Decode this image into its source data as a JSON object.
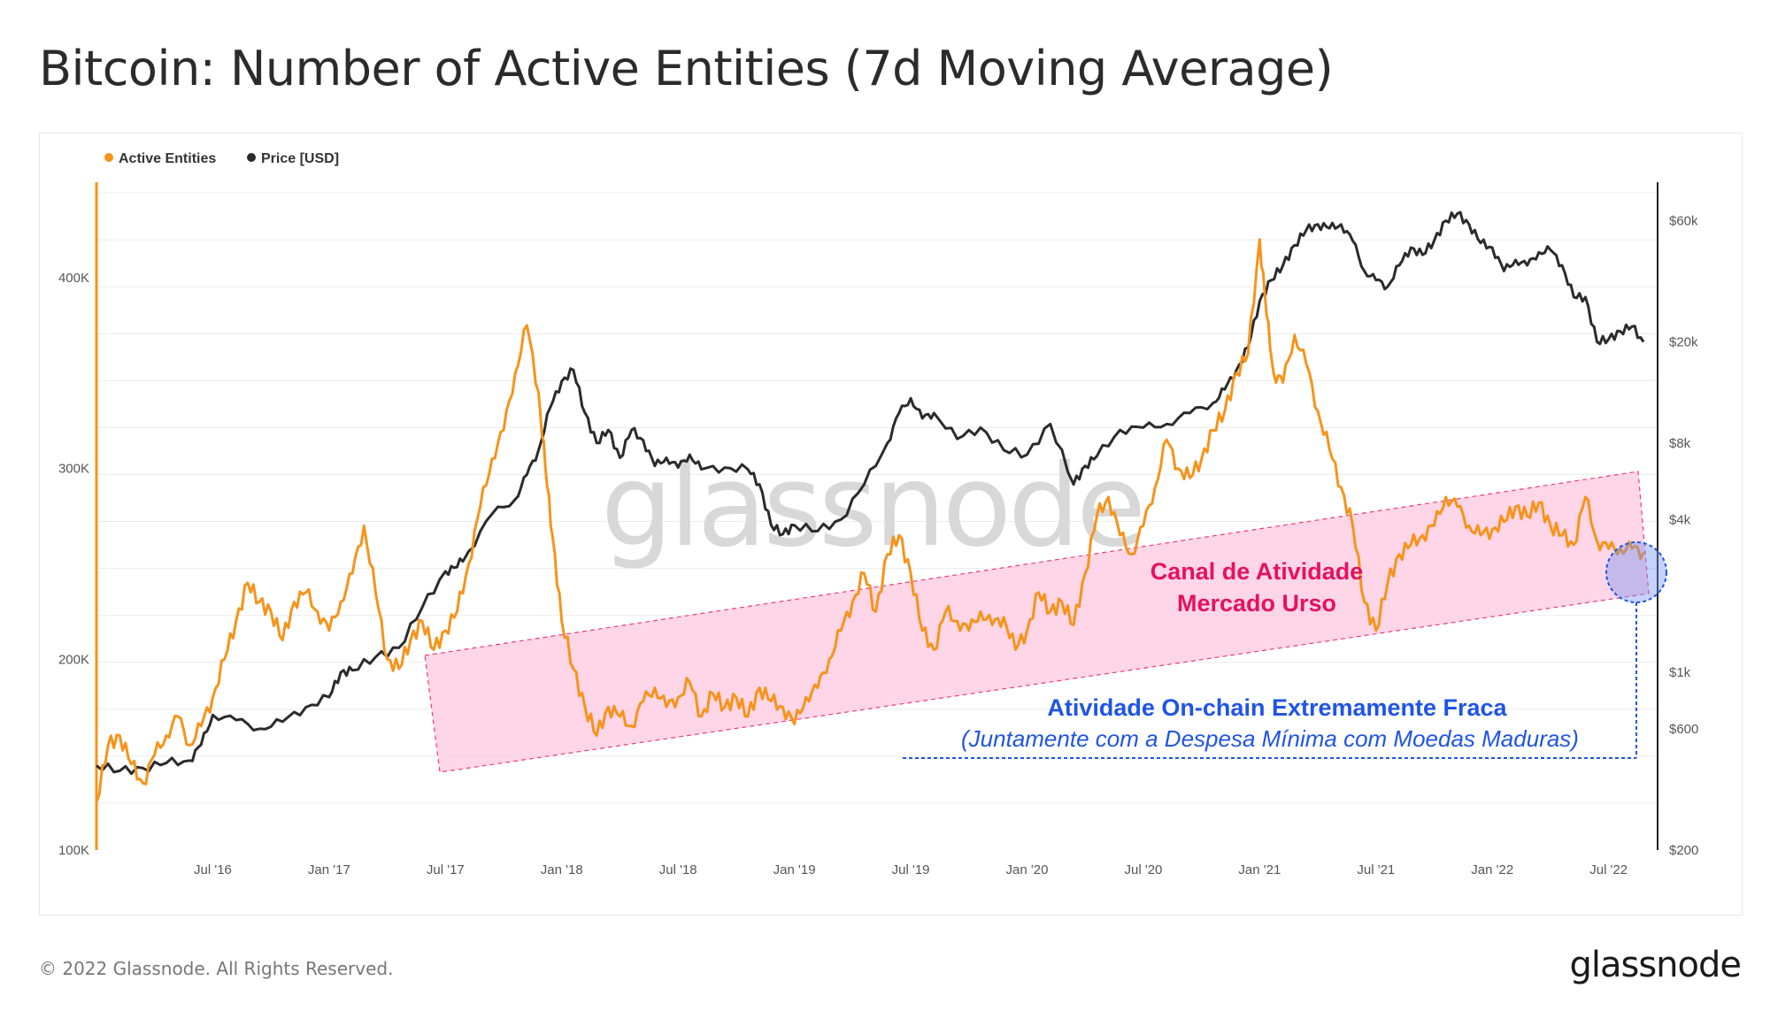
{
  "title": "Bitcoin: Number of Active Entities (7d Moving Average)",
  "footer": "© 2022 Glassnode. All Rights Reserved.",
  "brand": "glassnode",
  "watermark": "glassnode",
  "colors": {
    "active": "#f7931a",
    "price": "#2b2b2b",
    "channel": "#ffb6d5",
    "channel_border": "#f03c7a",
    "pink_text": "#e8105f",
    "blue_text": "#1f54e6"
  },
  "chart_data": {
    "type": "line",
    "title": "Bitcoin: Number of Active Entities (7d Moving Average)",
    "legend": [
      "Active Entities",
      "Price [USD]"
    ],
    "legend_position": "top-left",
    "x_ticks": [
      "Jul '16",
      "Jan '17",
      "Jul '17",
      "Jan '18",
      "Jul '18",
      "Jan '19",
      "Jul '19",
      "Jan '20",
      "Jul '20",
      "Jan '21",
      "Jul '21",
      "Jan '22",
      "Jul '22"
    ],
    "x_range": [
      2016.0,
      2022.68
    ],
    "y_left": {
      "label": "Active Entities",
      "ticks": [
        "100K",
        "200K",
        "300K",
        "400K"
      ],
      "tick_values": [
        100000,
        200000,
        300000,
        400000
      ],
      "range": [
        100000,
        450000
      ]
    },
    "y_right": {
      "label": "Price [USD]",
      "scale": "log",
      "ticks": [
        "$200",
        "$600",
        "$1k",
        "$4k",
        "$8k",
        "$20k",
        "$60k"
      ],
      "tick_values": [
        200,
        600,
        1000,
        4000,
        8000,
        20000,
        60000
      ],
      "range": [
        200,
        85000
      ]
    },
    "series": [
      {
        "name": "Active Entities",
        "x": [
          2016.0,
          2016.05,
          2016.1,
          2016.15,
          2016.2,
          2016.25,
          2016.3,
          2016.35,
          2016.4,
          2016.45,
          2016.5,
          2016.55,
          2016.6,
          2016.65,
          2016.7,
          2016.75,
          2016.8,
          2016.85,
          2016.9,
          2016.95,
          2017.0,
          2017.05,
          2017.1,
          2017.15,
          2017.2,
          2017.25,
          2017.3,
          2017.35,
          2017.4,
          2017.45,
          2017.5,
          2017.55,
          2017.6,
          2017.65,
          2017.7,
          2017.75,
          2017.8,
          2017.85,
          2017.9,
          2017.93,
          2017.96,
          2018.0,
          2018.05,
          2018.1,
          2018.15,
          2018.2,
          2018.25,
          2018.3,
          2018.35,
          2018.4,
          2018.45,
          2018.5,
          2018.55,
          2018.6,
          2018.65,
          2018.7,
          2018.75,
          2018.8,
          2018.85,
          2018.9,
          2018.95,
          2019.0,
          2019.05,
          2019.1,
          2019.15,
          2019.2,
          2019.25,
          2019.3,
          2019.35,
          2019.4,
          2019.45,
          2019.5,
          2019.55,
          2019.6,
          2019.65,
          2019.7,
          2019.75,
          2019.8,
          2019.85,
          2019.9,
          2019.95,
          2020.0,
          2020.05,
          2020.1,
          2020.15,
          2020.2,
          2020.25,
          2020.3,
          2020.35,
          2020.4,
          2020.45,
          2020.5,
          2020.55,
          2020.6,
          2020.65,
          2020.7,
          2020.75,
          2020.8,
          2020.85,
          2020.9,
          2020.95,
          2021.0,
          2021.03,
          2021.06,
          2021.1,
          2021.15,
          2021.2,
          2021.25,
          2021.3,
          2021.35,
          2021.4,
          2021.45,
          2021.5,
          2021.55,
          2021.6,
          2021.65,
          2021.7,
          2021.75,
          2021.8,
          2021.85,
          2021.9,
          2021.95,
          2022.0,
          2022.05,
          2022.1,
          2022.15,
          2022.2,
          2022.25,
          2022.3,
          2022.35,
          2022.4,
          2022.45,
          2022.5,
          2022.55,
          2022.6,
          2022.65
        ],
        "values": [
          125000,
          155000,
          160000,
          145000,
          135000,
          150000,
          160000,
          170000,
          155000,
          165000,
          180000,
          200000,
          220000,
          240000,
          230000,
          225000,
          210000,
          230000,
          235000,
          225000,
          215000,
          230000,
          245000,
          270000,
          235000,
          200000,
          195000,
          210000,
          220000,
          205000,
          215000,
          225000,
          250000,
          280000,
          305000,
          320000,
          350000,
          375000,
          340000,
          300000,
          265000,
          220000,
          195000,
          175000,
          160000,
          175000,
          170000,
          165000,
          178000,
          185000,
          175000,
          180000,
          188000,
          170000,
          182000,
          175000,
          180000,
          170000,
          185000,
          178000,
          175000,
          166000,
          180000,
          185000,
          200000,
          215000,
          230000,
          245000,
          225000,
          255000,
          265000,
          245000,
          215000,
          205000,
          225000,
          220000,
          215000,
          225000,
          218000,
          222000,
          205000,
          215000,
          235000,
          225000,
          230000,
          218000,
          245000,
          275000,
          285000,
          265000,
          255000,
          270000,
          290000,
          315000,
          300000,
          295000,
          305000,
          320000,
          330000,
          350000,
          360000,
          420000,
          380000,
          350000,
          345000,
          370000,
          355000,
          330000,
          310000,
          290000,
          270000,
          230000,
          215000,
          240000,
          255000,
          260000,
          265000,
          270000,
          285000,
          280000,
          270000,
          265000,
          268000,
          272000,
          280000,
          275000,
          282000,
          270000,
          265000,
          260000,
          285000,
          262000,
          258000,
          258000,
          258000,
          256000
        ]
      },
      {
        "name": "Price [USD]",
        "x": [
          2016.0,
          2016.1,
          2016.2,
          2016.3,
          2016.4,
          2016.45,
          2016.5,
          2016.6,
          2016.7,
          2016.8,
          2016.9,
          2017.0,
          2017.05,
          2017.1,
          2017.2,
          2017.3,
          2017.4,
          2017.5,
          2017.55,
          2017.6,
          2017.7,
          2017.8,
          2017.85,
          2017.9,
          2017.95,
          2018.0,
          2018.05,
          2018.1,
          2018.15,
          2018.2,
          2018.25,
          2018.3,
          2018.35,
          2018.4,
          2018.45,
          2018.5,
          2018.55,
          2018.6,
          2018.7,
          2018.8,
          2018.85,
          2018.9,
          2018.95,
          2019.0,
          2019.1,
          2019.2,
          2019.3,
          2019.4,
          2019.45,
          2019.5,
          2019.55,
          2019.6,
          2019.7,
          2019.8,
          2019.9,
          2020.0,
          2020.1,
          2020.2,
          2020.25,
          2020.3,
          2020.4,
          2020.5,
          2020.6,
          2020.7,
          2020.8,
          2020.85,
          2020.9,
          2020.95,
          2021.0,
          2021.05,
          2021.1,
          2021.15,
          2021.2,
          2021.25,
          2021.3,
          2021.35,
          2021.4,
          2021.45,
          2021.5,
          2021.55,
          2021.6,
          2021.65,
          2021.7,
          2021.75,
          2021.8,
          2021.85,
          2021.9,
          2021.95,
          2022.0,
          2022.05,
          2022.1,
          2022.15,
          2022.2,
          2022.25,
          2022.3,
          2022.35,
          2022.4,
          2022.45,
          2022.5,
          2022.55,
          2022.6,
          2022.65
        ],
        "values": [
          430,
          410,
          420,
          440,
          450,
          520,
          680,
          650,
          600,
          640,
          730,
          800,
          1000,
          1020,
          1150,
          1250,
          1800,
          2500,
          2600,
          3000,
          4200,
          4800,
          6000,
          7500,
          11000,
          14000,
          15500,
          10500,
          8000,
          9000,
          7000,
          9000,
          8200,
          6500,
          7000,
          6400,
          7200,
          6300,
          6400,
          6300,
          5500,
          3800,
          3500,
          3800,
          3600,
          4000,
          5500,
          8000,
          10500,
          12000,
          10000,
          10500,
          8300,
          9200,
          7500,
          7200,
          9500,
          5500,
          6500,
          7100,
          9000,
          9200,
          9500,
          10500,
          11500,
          13000,
          15500,
          19000,
          29000,
          35000,
          40000,
          48000,
          55000,
          58000,
          56000,
          58000,
          50000,
          38000,
          35000,
          33000,
          40000,
          47000,
          44000,
          50000,
          60000,
          64000,
          58000,
          49000,
          47000,
          38000,
          42000,
          40000,
          45000,
          46000,
          40000,
          30000,
          30000,
          20000,
          20500,
          22000,
          23000,
          20000
        ]
      }
    ],
    "annotations": {
      "channel_label_1": "Canal de Atividade",
      "channel_label_2": "Mercado Urso",
      "note_bold": "Atividade On-chain Extremamente Fraca",
      "note_italic": "(Juntamente com a Despesa Mínima com Moedas Maduras)"
    }
  }
}
